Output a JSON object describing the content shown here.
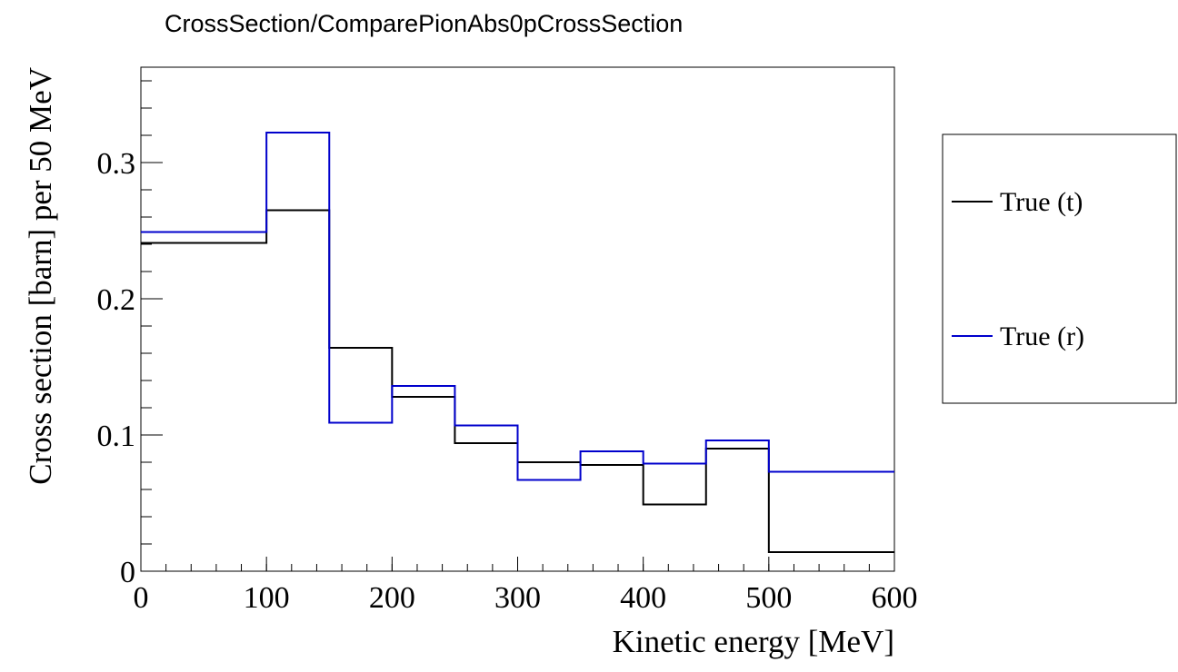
{
  "chart_data": {
    "type": "histogram",
    "title": "CrossSection/ComparePionAbs0pCrossSection",
    "xlabel": "Kinetic energy [MeV]",
    "ylabel": "Cross section [barn] per 50 MeV",
    "xlim": [
      0,
      600
    ],
    "ylim": [
      0,
      0.37
    ],
    "x_ticks": [
      "0",
      "100",
      "200",
      "300",
      "400",
      "500",
      "600"
    ],
    "x_tick_values": [
      0,
      100,
      200,
      300,
      400,
      500,
      600
    ],
    "y_ticks": [
      "0",
      "0.1",
      "0.2",
      "0.3"
    ],
    "y_tick_values": [
      0,
      0.1,
      0.2,
      0.3
    ],
    "bin_edges": [
      0,
      100,
      150,
      200,
      250,
      300,
      350,
      400,
      450,
      500,
      600
    ],
    "series": [
      {
        "name": "True (t)",
        "color": "#000000",
        "values": [
          0.241,
          0.265,
          0.164,
          0.128,
          0.094,
          0.08,
          0.078,
          0.049,
          0.09,
          0.014
        ]
      },
      {
        "name": "True (r)",
        "color": "#0000cc",
        "values": [
          0.249,
          0.322,
          0.109,
          0.136,
          0.107,
          0.067,
          0.088,
          0.079,
          0.096,
          0.073
        ]
      }
    ],
    "legend_position": "right"
  }
}
